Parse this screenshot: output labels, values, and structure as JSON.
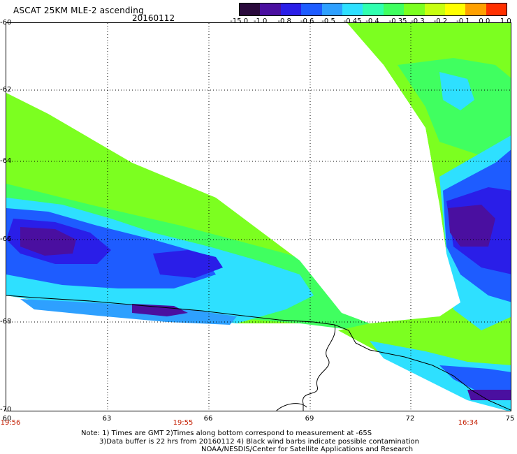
{
  "header": {
    "title": "ASCAT 25KM MLE-2 ascending",
    "date": "20160112"
  },
  "colorbar": {
    "labels": [
      "-15.0",
      "-1.0",
      "-0.8",
      "-0.6",
      "-0.5",
      "-0.45",
      "-0.4",
      "-0.35",
      "-0.3",
      "-0.2",
      "-0.1",
      "0.0",
      "1.0"
    ],
    "colors": [
      "#2a0a3c",
      "#4a0fa0",
      "#2a1ee8",
      "#1e5cff",
      "#2ea0ff",
      "#2ee0ff",
      "#30ffb0",
      "#40ff60",
      "#7cff20",
      "#c8ff10",
      "#ffff00",
      "#ffa000",
      "#ff3000"
    ]
  },
  "map": {
    "lat_labels": [
      "-60",
      "-62",
      "-64",
      "-66",
      "-68",
      "-70"
    ],
    "lon_labels": [
      "60",
      "63",
      "66",
      "69",
      "72",
      "75"
    ],
    "time_labels": [
      "19:56",
      "19:55",
      "16:34"
    ]
  },
  "notes": {
    "line1": "Note: 1) Times are GMT 2)Times along bottom correspond to measurement at -65S",
    "line2": "3)Data buffer is 22 hrs from 20160112 4) Black wind barbs indicate possible contamination",
    "line3": "NOAA/NESDIS/Center for Satellite Applications and Research"
  }
}
